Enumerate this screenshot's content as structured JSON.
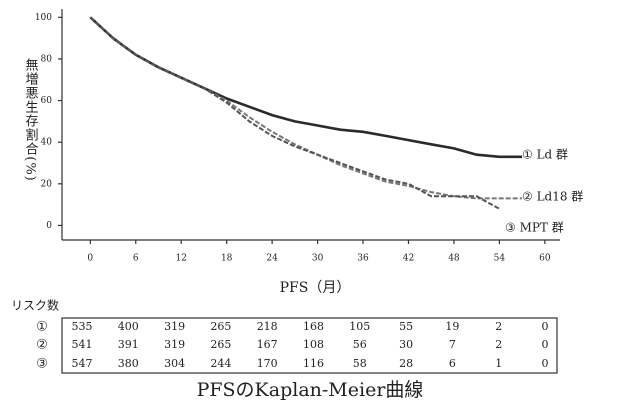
{
  "chart_data": {
    "type": "line",
    "title": "PFSのKaplan-Meier曲線",
    "x_label": "PFS（月）",
    "y_label": "無増悪生存割合(%)",
    "x": [
      0,
      3,
      6,
      9,
      12,
      15,
      18,
      21,
      24,
      27,
      30,
      33,
      36,
      39,
      42,
      45,
      48,
      51,
      54,
      57
    ],
    "series": [
      {
        "name": "① Ld 群",
        "color": "#2a2a2a",
        "linestyle": "solid",
        "values": [
          100,
          90,
          82,
          76,
          71,
          66,
          61,
          57,
          53,
          50,
          48,
          46,
          45,
          43,
          41,
          39,
          37,
          34,
          33,
          33
        ]
      },
      {
        "name": "② Ld18 群",
        "color": "#777777",
        "linestyle": "dashed",
        "values": [
          100,
          90,
          82,
          76,
          71,
          66,
          60,
          52,
          45,
          39,
          34,
          29,
          25,
          21,
          19,
          16,
          14,
          13,
          13,
          13
        ]
      },
      {
        "name": "③ MPT 群",
        "color": "#555555",
        "linestyle": "dashed",
        "values": [
          100,
          90,
          82,
          76,
          71,
          66,
          59,
          50,
          43,
          38,
          34,
          30,
          26,
          22,
          20,
          14,
          14,
          14,
          8,
          null
        ]
      }
    ],
    "xlim": [
      -4,
      62
    ],
    "ylim": [
      -7,
      104
    ],
    "xticks": [
      0,
      6,
      12,
      18,
      24,
      30,
      36,
      42,
      48,
      54,
      60
    ],
    "yticks": [
      0,
      20,
      40,
      60,
      80,
      100
    ],
    "risk_table": {
      "title": "リスク数",
      "rows": [
        {
          "label": "①",
          "values": [
            "535",
            "400",
            "319",
            "265",
            "218",
            "168",
            "105",
            "55",
            "19",
            "2",
            "0"
          ]
        },
        {
          "label": "②",
          "values": [
            "541",
            "391",
            "319",
            "265",
            "167",
            "108",
            "56",
            "30",
            "7",
            "2",
            "0"
          ]
        },
        {
          "label": "③",
          "values": [
            "547",
            "380",
            "304",
            "244",
            "170",
            "116",
            "58",
            "28",
            "6",
            "1",
            "0"
          ]
        }
      ]
    }
  }
}
